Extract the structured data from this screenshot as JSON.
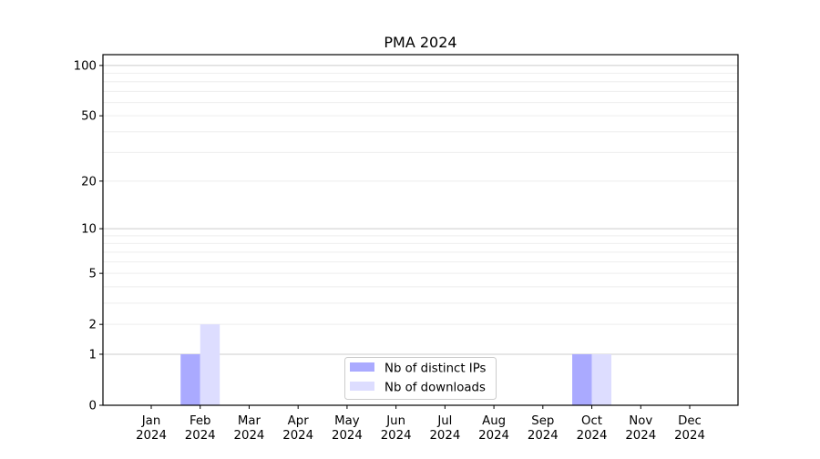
{
  "chart_data": {
    "type": "bar",
    "title": "PMA 2024",
    "xlabel": "",
    "ylabel": "",
    "yscale": "log(1+y)",
    "ylim": [
      0,
      116
    ],
    "yticks": [
      0,
      1,
      2,
      5,
      10,
      20,
      50,
      100
    ],
    "grid": true,
    "legend_position": "lower center",
    "categories": [
      "Jan\n2024",
      "Feb\n2024",
      "Mar\n2024",
      "Apr\n2024",
      "May\n2024",
      "Jun\n2024",
      "Jul\n2024",
      "Aug\n2024",
      "Sep\n2024",
      "Oct\n2024",
      "Nov\n2024",
      "Dec\n2024"
    ],
    "series": [
      {
        "name": "Nb of distinct IPs",
        "color": "#aaaaff",
        "values": [
          0,
          1,
          0,
          0,
          0,
          0,
          0,
          0,
          0,
          1,
          0,
          0
        ]
      },
      {
        "name": "Nb of downloads",
        "color": "#ddddff",
        "values": [
          0,
          2,
          0,
          0,
          0,
          0,
          0,
          0,
          0,
          1,
          0,
          0
        ]
      }
    ]
  }
}
